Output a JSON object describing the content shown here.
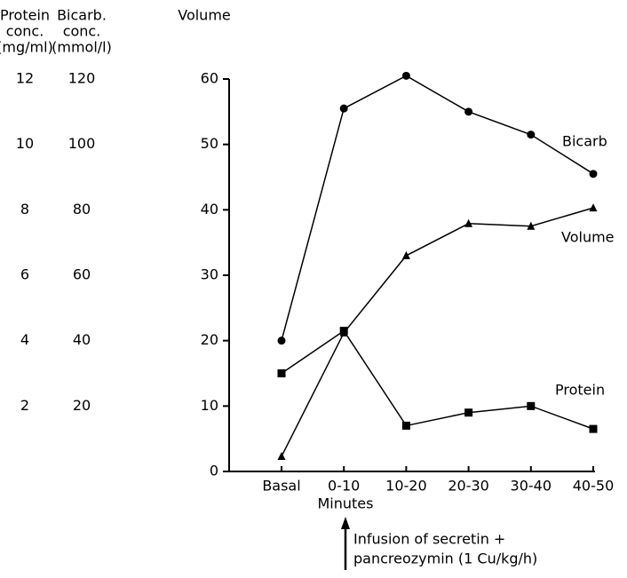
{
  "chart_data": {
    "type": "line",
    "categories": [
      "Basal",
      "0-10",
      "10-20",
      "20-30",
      "30-40",
      "40-50"
    ],
    "xlabel": "Minutes",
    "annotation": [
      "Infusion of secretin +",
      "pancreozymin (1 Cu/kg/h)"
    ],
    "y_axes": [
      {
        "title": [
          "Protein",
          "conc.",
          "(mg/ml)"
        ],
        "ylim": [
          0,
          12
        ],
        "yticks": [
          2,
          4,
          6,
          8,
          10,
          12
        ]
      },
      {
        "title": [
          "Bicarb.",
          "conc.",
          "(mmol/l)"
        ],
        "ylim": [
          0,
          120
        ],
        "yticks": [
          20,
          40,
          60,
          80,
          100,
          120
        ]
      },
      {
        "title": [
          "Volume"
        ],
        "ylim": [
          0,
          60
        ],
        "yticks": [
          0,
          10,
          20,
          30,
          40,
          50,
          60
        ]
      }
    ],
    "series": [
      {
        "name": "Bicarb",
        "axis": 1,
        "marker": "circle",
        "color": "#000000",
        "values": [
          40,
          111,
          121,
          110,
          103,
          91
        ]
      },
      {
        "name": "Volume",
        "axis": 2,
        "marker": "triangle",
        "color": "#000000",
        "values": [
          2.3,
          21.2,
          33,
          37.9,
          37.5,
          40.3
        ]
      },
      {
        "name": "Protein",
        "axis": 0,
        "marker": "square",
        "color": "#000000",
        "values": [
          3.0,
          4.3,
          1.4,
          1.8,
          2.0,
          1.3
        ]
      }
    ]
  }
}
